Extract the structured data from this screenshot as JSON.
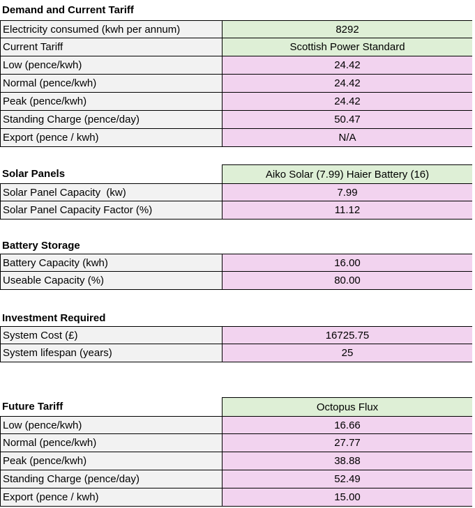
{
  "colors": {
    "input_green": "#deefd6",
    "input_pink": "#f2d3ef",
    "label_gray": "#f2f2f2",
    "border": "#000000",
    "text": "#000000"
  },
  "sections": [
    {
      "title": "Demand and Current Tariff",
      "rows": [
        {
          "label": "Electricity consumed (kwh per annum)",
          "value": "8292"
        },
        {
          "label": "Current Tariff",
          "value": "Scottish Power Standard"
        },
        {
          "label": "Low (pence/kwh)",
          "value": "24.42"
        },
        {
          "label": "Normal (pence/kwh)",
          "value": "24.42"
        },
        {
          "label": "Peak (pence/kwh)",
          "value": "24.42"
        },
        {
          "label": "Standing Charge (pence/day)",
          "value": "50.47"
        },
        {
          "label": "Export (pence / kwh)",
          "value": "N/A"
        }
      ]
    },
    {
      "title": "Solar Panels",
      "header_value": "Aiko Solar (7.99) Haier Battery (16)",
      "rows": [
        {
          "label": "Solar Panel Capacity  (kw)",
          "value": "7.99"
        },
        {
          "label": "Solar Panel Capacity Factor (%)",
          "value": "11.12"
        }
      ]
    },
    {
      "title": "Battery Storage",
      "rows": [
        {
          "label": "Battery Capacity (kwh)",
          "value": "16.00"
        },
        {
          "label": "Useable Capacity (%)",
          "value": "80.00"
        }
      ]
    },
    {
      "title": "Investment Required",
      "rows": [
        {
          "label": "System Cost (£)",
          "value": "16725.75"
        },
        {
          "label": "System lifespan (years)",
          "value": "25"
        }
      ]
    },
    {
      "title": "Future Tariff",
      "header_value": "Octopus Flux",
      "rows": [
        {
          "label": "Low (pence/kwh)",
          "value": "16.66"
        },
        {
          "label": "Normal (pence/kwh)",
          "value": "27.77"
        },
        {
          "label": "Peak (pence/kwh)",
          "value": "38.88"
        },
        {
          "label": "Standing Charge (pence/day)",
          "value": "52.49"
        },
        {
          "label": "Export (pence / kwh)",
          "value": "15.00"
        }
      ]
    }
  ]
}
